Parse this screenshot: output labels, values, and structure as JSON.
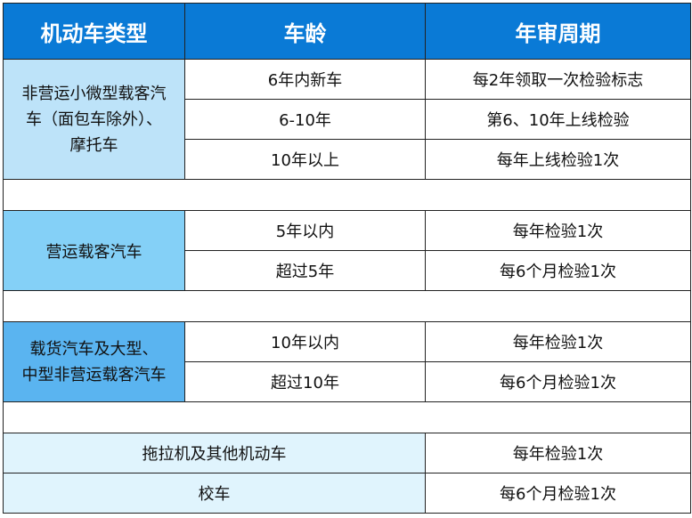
{
  "header": [
    "机动车类型",
    "车龄",
    "年审周期"
  ],
  "colors": {
    "header": "#0a7ad6",
    "group1": "#bde3f9",
    "group2": "#84d0f7",
    "group3": "#5ab4f0",
    "group4": "#e0f4fd"
  },
  "groups": [
    {
      "type_lines": [
        "非营运小微型载客汽",
        "车（面包车除外）、",
        "摩托车"
      ],
      "rows": [
        {
          "age": "6年内新车",
          "cycle": "每2年领取一次检验标志"
        },
        {
          "age": "6-10年",
          "cycle": "第6、10年上线检验"
        },
        {
          "age": "10年以上",
          "cycle": "每年上线检验1次"
        }
      ]
    },
    {
      "type_lines": [
        "营运载客汽车"
      ],
      "rows": [
        {
          "age": "5年以内",
          "cycle": "每年检验1次"
        },
        {
          "age": "超过5年",
          "cycle": "每6个月检验1次"
        }
      ]
    },
    {
      "type_lines": [
        "载货汽车及大型、",
        "中型非营运载客汽车"
      ],
      "rows": [
        {
          "age": "10年以内",
          "cycle": "每年检验1次"
        },
        {
          "age": "超过10年",
          "cycle": "每6个月检验1次"
        }
      ]
    }
  ],
  "others": [
    {
      "type": "拖拉机及其他机动车",
      "cycle": "每年检验1次"
    },
    {
      "type": "校车",
      "cycle": "每6个月检验1次"
    }
  ]
}
